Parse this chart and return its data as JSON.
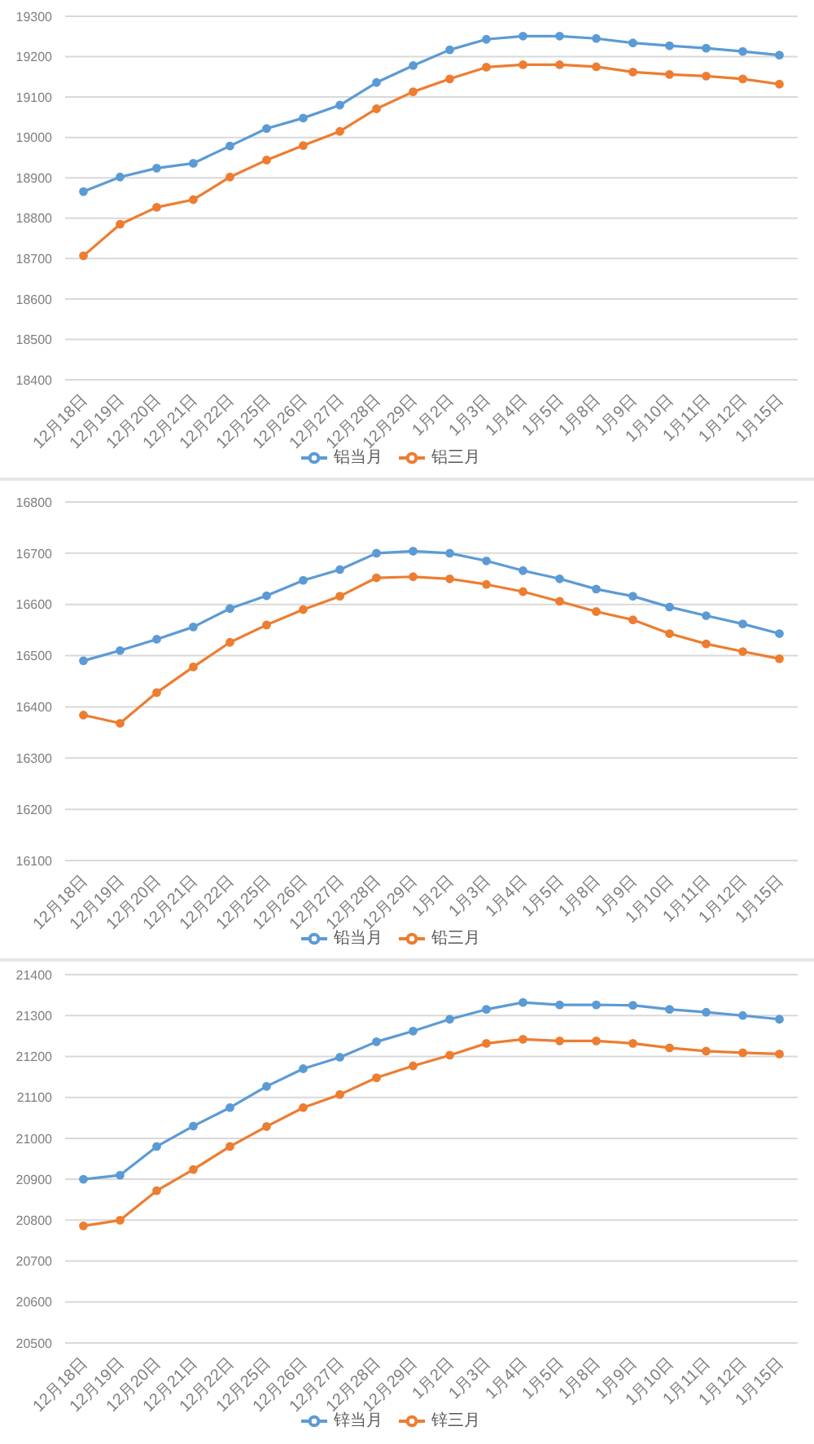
{
  "chart_data": [
    {
      "type": "line",
      "categories": [
        "12月18日",
        "12月19日",
        "12月20日",
        "12月21日",
        "12月22日",
        "12月25日",
        "12月26日",
        "12月27日",
        "12月28日",
        "12月29日",
        "1月2日",
        "1月3日",
        "1月4日",
        "1月5日",
        "1月8日",
        "1月9日",
        "1月10日",
        "1月11日",
        "1月12日",
        "1月15日"
      ],
      "series": [
        {
          "name": "铝当月",
          "color": "#5b9bd5",
          "values": [
            18866,
            18902,
            18924,
            18936,
            18979,
            19022,
            19048,
            19080,
            19136,
            19178,
            19217,
            19243,
            19251,
            19251,
            19245,
            19234,
            19227,
            19221,
            19213,
            19204
          ]
        },
        {
          "name": "铝三月",
          "color": "#ed7d31",
          "values": [
            18707,
            18785,
            18827,
            18846,
            18902,
            18944,
            18980,
            19015,
            19071,
            19113,
            19145,
            19174,
            19180,
            19180,
            19175,
            19162,
            19156,
            19152,
            19145,
            19132
          ]
        }
      ],
      "ylim": [
        18400,
        19300
      ],
      "yticks": [
        18400,
        18500,
        18600,
        18700,
        18800,
        18900,
        19000,
        19100,
        19200,
        19300
      ],
      "grid": "y",
      "legend": "bottom",
      "marker": "circle"
    },
    {
      "type": "line",
      "categories": [
        "12月18日",
        "12月19日",
        "12月20日",
        "12月21日",
        "12月22日",
        "12月25日",
        "12月26日",
        "12月27日",
        "12月28日",
        "12月29日",
        "1月2日",
        "1月3日",
        "1月4日",
        "1月5日",
        "1月8日",
        "1月9日",
        "1月10日",
        "1月11日",
        "1月12日",
        "1月15日"
      ],
      "series": [
        {
          "name": "铅当月",
          "color": "#5b9bd5",
          "values": [
            16490,
            16510,
            16532,
            16556,
            16592,
            16617,
            16647,
            16668,
            16700,
            16704,
            16700,
            16685,
            16666,
            16650,
            16630,
            16616,
            16595,
            16578,
            16562,
            16543
          ]
        },
        {
          "name": "铅三月",
          "color": "#ed7d31",
          "values": [
            16384,
            16368,
            16428,
            16478,
            16526,
            16560,
            16590,
            16616,
            16652,
            16654,
            16650,
            16639,
            16625,
            16606,
            16586,
            16570,
            16543,
            16523,
            16508,
            16494
          ]
        }
      ],
      "ylim": [
        16100,
        16800
      ],
      "yticks": [
        16100,
        16200,
        16300,
        16400,
        16500,
        16600,
        16700,
        16800
      ],
      "grid": "y",
      "legend": "bottom",
      "marker": "circle"
    },
    {
      "type": "line",
      "categories": [
        "12月18日",
        "12月19日",
        "12月20日",
        "12月21日",
        "12月22日",
        "12月25日",
        "12月26日",
        "12月27日",
        "12月28日",
        "12月29日",
        "1月2日",
        "1月3日",
        "1月4日",
        "1月5日",
        "1月8日",
        "1月9日",
        "1月10日",
        "1月11日",
        "1月12日",
        "1月15日"
      ],
      "series": [
        {
          "name": "锌当月",
          "color": "#5b9bd5",
          "values": [
            20900,
            20910,
            20980,
            21030,
            21075,
            21127,
            21170,
            21198,
            21236,
            21262,
            21291,
            21315,
            21332,
            21326,
            21326,
            21325,
            21315,
            21308,
            21300,
            21291
          ]
        },
        {
          "name": "锌三月",
          "color": "#ed7d31",
          "values": [
            20786,
            20800,
            20872,
            20924,
            20980,
            21029,
            21075,
            21107,
            21148,
            21177,
            21203,
            21232,
            21242,
            21238,
            21238,
            21232,
            21221,
            21213,
            21209,
            21206
          ]
        }
      ],
      "ylim": [
        20500,
        21400
      ],
      "yticks": [
        20500,
        20600,
        20700,
        20800,
        20900,
        21000,
        21100,
        21200,
        21300,
        21400
      ],
      "grid": "y",
      "legend": "bottom",
      "marker": "circle"
    }
  ]
}
